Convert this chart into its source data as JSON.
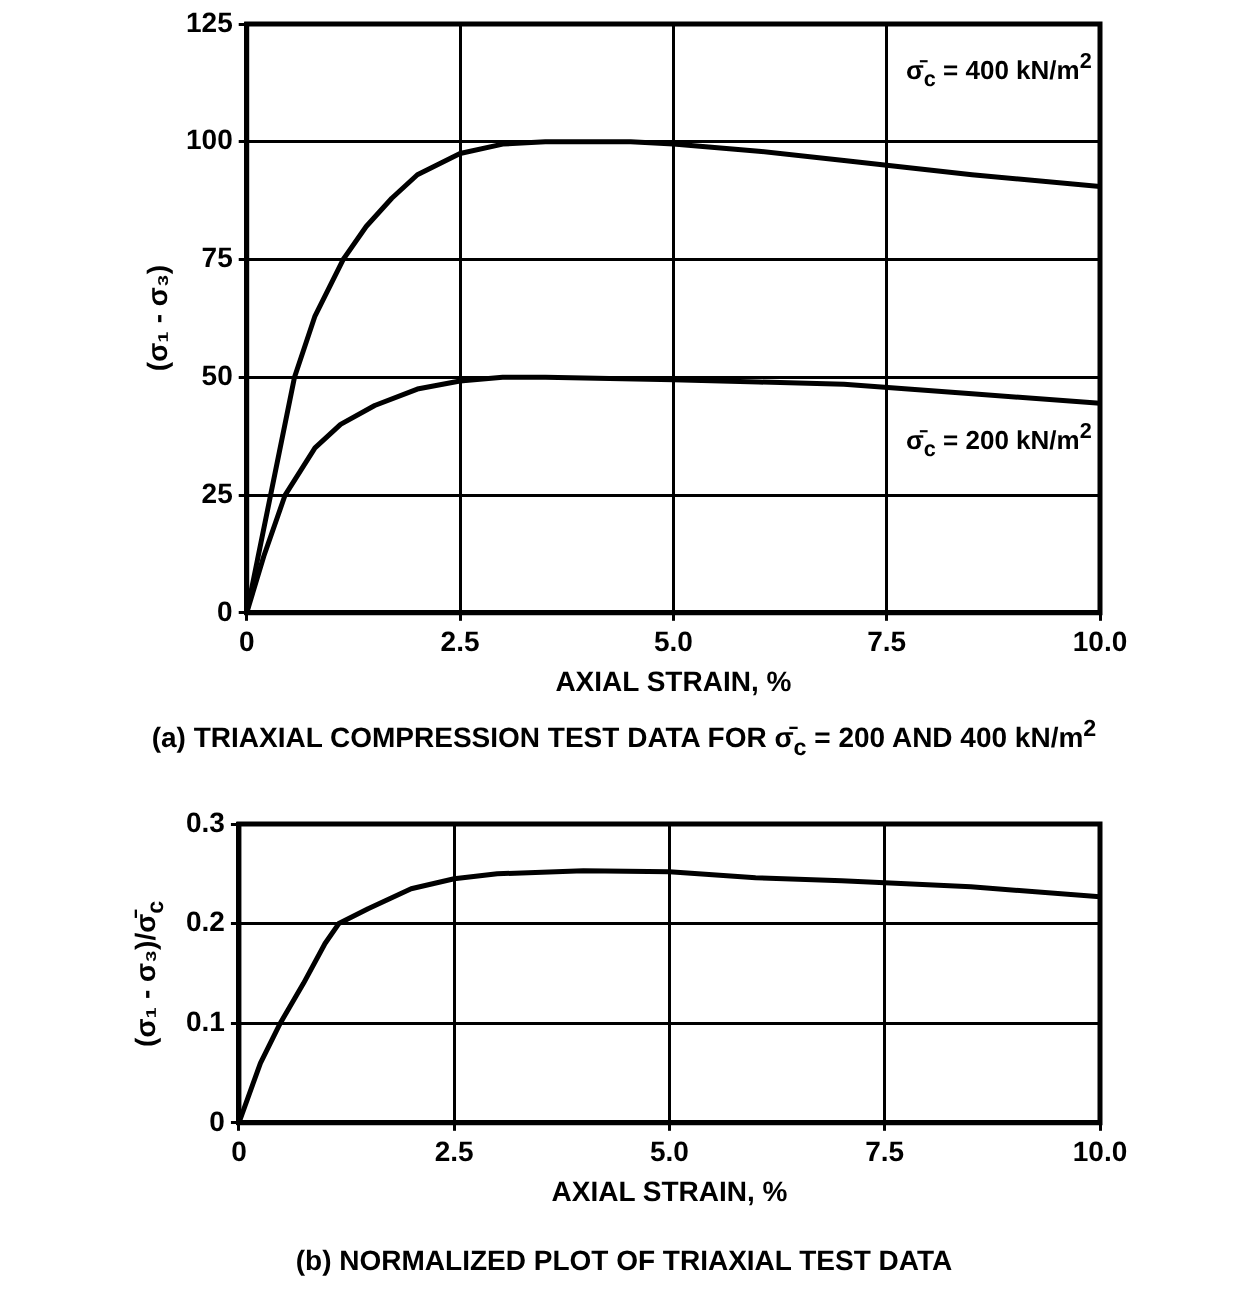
{
  "chart_data": [
    {
      "type": "line",
      "title": "(a) TRIAXIAL COMPRESSION TEST DATA FOR σ̄$_{c}$ = 200 AND 400 kN/m$^{2}$",
      "xlabel": "AXIAL STRAIN, %",
      "ylabel": "(σ₁ - σ₃)",
      "marker": "none",
      "grid": true,
      "xlim": [
        0,
        10
      ],
      "xticks": [
        0,
        {
          "value": 2.5,
          "label": "2.5"
        },
        {
          "value": 5,
          "label": "5.0"
        },
        {
          "value": 7.5,
          "label": "7.5"
        },
        {
          "value": 10,
          "label": "10.0"
        }
      ],
      "ylim": [
        0,
        125
      ],
      "yticks": [
        0,
        25,
        50,
        75,
        100,
        125
      ],
      "series": [
        {
          "name": "σ̄$_{c}$ = 400 kN/m$^{2}$",
          "color": "#000000",
          "x": [
            0,
            0.28,
            0.56,
            0.8,
            1.13,
            1.4,
            1.7,
            2.0,
            2.5,
            3.0,
            3.5,
            4.0,
            4.5,
            5.0,
            6.0,
            7.0,
            7.5,
            8.5,
            10
          ],
          "values": [
            0,
            25,
            50,
            63,
            75,
            82,
            88,
            93,
            97.5,
            99.5,
            100,
            100,
            100,
            99.5,
            98,
            96,
            95,
            93,
            90.5
          ]
        },
        {
          "name": "σ̄$_{c}$ = 200 kN/m$^{2}$",
          "color": "#000000",
          "x": [
            0,
            0.2,
            0.45,
            0.8,
            1.1,
            1.5,
            2.0,
            2.5,
            3.0,
            3.5,
            5.0,
            6.0,
            7.0,
            8.5,
            10
          ],
          "values": [
            0,
            12,
            25,
            35,
            40,
            44,
            47.5,
            49.2,
            50,
            50,
            49.5,
            49,
            48.5,
            46.5,
            44.5
          ]
        }
      ]
    },
    {
      "type": "line",
      "title": "(b) NORMALIZED PLOT OF TRIAXIAL TEST DATA",
      "xlabel": "AXIAL STRAIN, %",
      "ylabel": "(σ₁ - σ₃)/σ̄$_{c}$",
      "marker": "none",
      "grid": true,
      "xlim": [
        0,
        10
      ],
      "xticks": [
        0,
        {
          "value": 2.5,
          "label": "2.5"
        },
        {
          "value": 5,
          "label": "5.0"
        },
        {
          "value": 7.5,
          "label": "7.5"
        },
        {
          "value": 10,
          "label": "10.0"
        }
      ],
      "ylim": [
        0,
        0.3
      ],
      "yticks": [
        0,
        0.1,
        0.2,
        0.3
      ],
      "series": [
        {
          "color": "#000000",
          "x": [
            0,
            0.25,
            0.48,
            0.75,
            1.0,
            1.16,
            1.5,
            2.0,
            2.5,
            3.0,
            4.0,
            5.0,
            6.0,
            7.0,
            7.5,
            8.5,
            10
          ],
          "values": [
            0,
            0.06,
            0.1,
            0.14,
            0.18,
            0.2,
            0.215,
            0.235,
            0.245,
            0.25,
            0.253,
            0.252,
            0.246,
            0.243,
            0.241,
            0.237,
            0.227
          ]
        }
      ]
    }
  ]
}
